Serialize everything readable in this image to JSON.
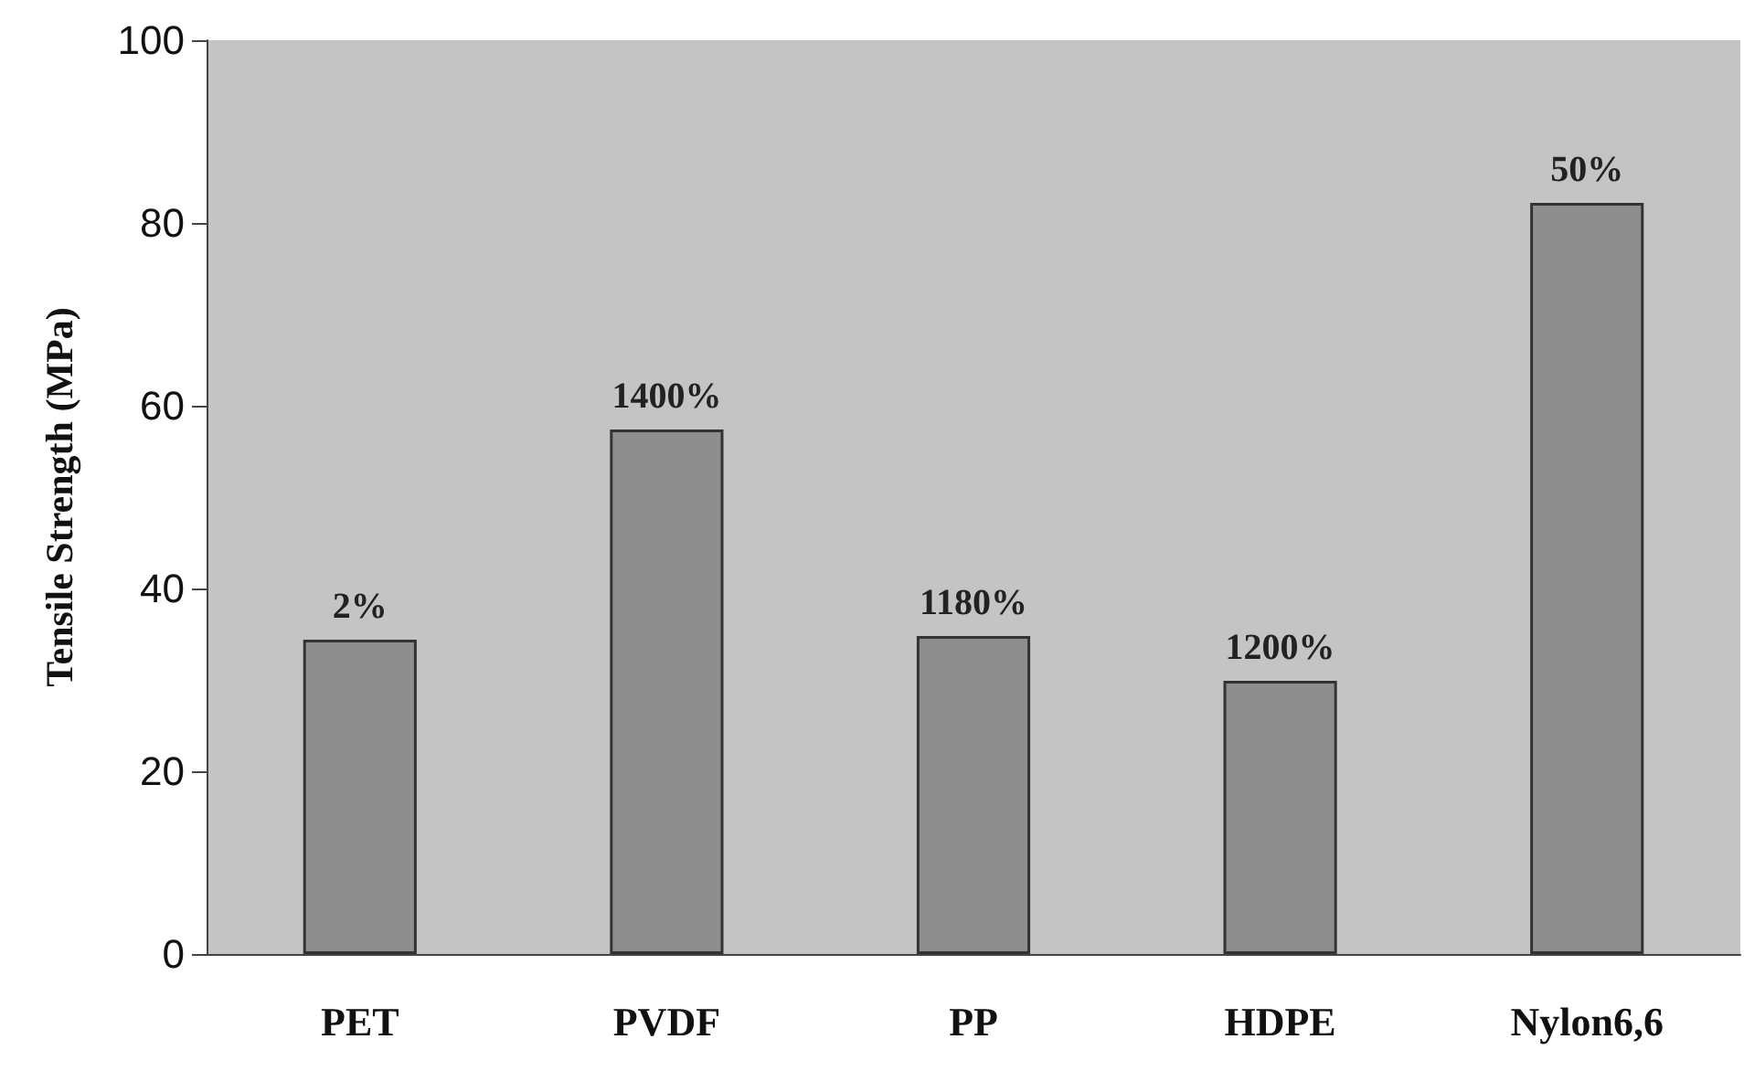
{
  "chart_data": {
    "type": "bar",
    "ylabel": "Tensile Strength (MPa)",
    "categories": [
      "PET",
      "PVDF",
      "PP",
      "HDPE",
      "Nylon6,6"
    ],
    "values": [
      34.4,
      57.4,
      34.8,
      29.9,
      82.2
    ],
    "annotations": [
      {
        "text": "2%",
        "x": "PET",
        "y": 34.4
      },
      {
        "text": "1400%",
        "x": "PVDF",
        "y": 57.4
      },
      {
        "text": "1180%",
        "x": "PP",
        "y": 34.8
      },
      {
        "text": "1200%",
        "x": "HDPE",
        "y": 29.9
      },
      {
        "text": "50%",
        "x": "Nylon6,6",
        "y": 82.2
      }
    ],
    "color": "#8e8e8e",
    "ylim": [
      0,
      100
    ],
    "yticks": [
      0,
      20,
      40,
      60,
      80,
      100
    ]
  }
}
